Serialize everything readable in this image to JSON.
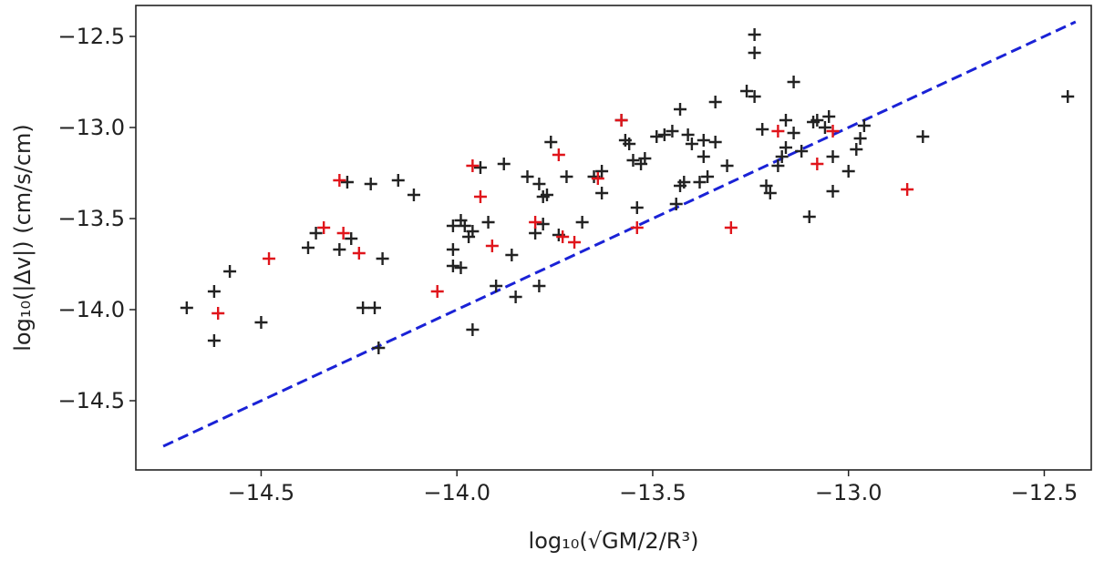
{
  "chart_data": {
    "type": "scatter",
    "xlabel": "log₁₀(√GM/2/R³)",
    "ylabel": "log₁₀(|Δv|) (cm/s/cm)",
    "xlim": [
      -14.82,
      -12.38
    ],
    "ylim": [
      -14.88,
      -12.33
    ],
    "xticks": [
      -14.5,
      -14.0,
      -13.5,
      -13.0,
      -12.5
    ],
    "xtick_labels": [
      "−14.5",
      "−14.0",
      "−13.5",
      "−13.0",
      "−12.5"
    ],
    "yticks": [
      -12.5,
      -13.0,
      -13.5,
      -14.0,
      -14.5
    ],
    "ytick_labels": [
      "−12.5",
      "−13.0",
      "−13.5",
      "−14.0",
      "−14.5"
    ],
    "grid": false,
    "marker": "+",
    "series": [
      {
        "color": "#222222",
        "points": [
          [
            -14.69,
            -13.99
          ],
          [
            -14.62,
            -13.9
          ],
          [
            -14.62,
            -14.17
          ],
          [
            -14.58,
            -13.79
          ],
          [
            -14.5,
            -14.07
          ],
          [
            -14.38,
            -13.66
          ],
          [
            -14.36,
            -13.58
          ],
          [
            -14.3,
            -13.67
          ],
          [
            -14.28,
            -13.3
          ],
          [
            -14.27,
            -13.61
          ],
          [
            -14.24,
            -13.99
          ],
          [
            -14.22,
            -13.31
          ],
          [
            -14.21,
            -13.99
          ],
          [
            -14.2,
            -14.21
          ],
          [
            -14.19,
            -13.72
          ],
          [
            -14.15,
            -13.29
          ],
          [
            -14.11,
            -13.37
          ],
          [
            -14.01,
            -13.54
          ],
          [
            -14.01,
            -13.67
          ],
          [
            -14.01,
            -13.76
          ],
          [
            -13.99,
            -13.51
          ],
          [
            -13.99,
            -13.77
          ],
          [
            -13.98,
            -13.54
          ],
          [
            -13.97,
            -13.6
          ],
          [
            -13.96,
            -14.11
          ],
          [
            -13.96,
            -13.57
          ],
          [
            -13.94,
            -13.22
          ],
          [
            -13.92,
            -13.52
          ],
          [
            -13.9,
            -13.87
          ],
          [
            -13.88,
            -13.2
          ],
          [
            -13.86,
            -13.7
          ],
          [
            -13.85,
            -13.93
          ],
          [
            -13.82,
            -13.27
          ],
          [
            -13.8,
            -13.58
          ],
          [
            -13.79,
            -13.31
          ],
          [
            -13.78,
            -13.53
          ],
          [
            -13.79,
            -13.87
          ],
          [
            -13.78,
            -13.38
          ],
          [
            -13.77,
            -13.37
          ],
          [
            -13.76,
            -13.08
          ],
          [
            -13.74,
            -13.59
          ],
          [
            -13.72,
            -13.27
          ],
          [
            -13.68,
            -13.52
          ],
          [
            -13.65,
            -13.27
          ],
          [
            -13.63,
            -13.36
          ],
          [
            -13.63,
            -13.24
          ],
          [
            -13.58,
            -12.96
          ],
          [
            -13.57,
            -13.07
          ],
          [
            -13.56,
            -13.09
          ],
          [
            -13.55,
            -13.18
          ],
          [
            -13.54,
            -13.44
          ],
          [
            -13.53,
            -13.2
          ],
          [
            -13.52,
            -13.17
          ],
          [
            -13.49,
            -13.05
          ],
          [
            -13.47,
            -13.04
          ],
          [
            -13.45,
            -13.02
          ],
          [
            -13.44,
            -13.42
          ],
          [
            -13.43,
            -12.9
          ],
          [
            -13.43,
            -13.32
          ],
          [
            -13.42,
            -13.3
          ],
          [
            -13.41,
            -13.04
          ],
          [
            -13.4,
            -13.09
          ],
          [
            -13.38,
            -13.3
          ],
          [
            -13.37,
            -13.16
          ],
          [
            -13.37,
            -13.07
          ],
          [
            -13.36,
            -13.27
          ],
          [
            -13.34,
            -12.86
          ],
          [
            -13.34,
            -13.08
          ],
          [
            -13.31,
            -13.21
          ],
          [
            -13.26,
            -12.8
          ],
          [
            -13.24,
            -12.49
          ],
          [
            -13.24,
            -12.59
          ],
          [
            -13.24,
            -12.83
          ],
          [
            -13.22,
            -13.01
          ],
          [
            -13.21,
            -13.32
          ],
          [
            -13.2,
            -13.36
          ],
          [
            -13.18,
            -13.21
          ],
          [
            -13.17,
            -13.16
          ],
          [
            -13.16,
            -13.11
          ],
          [
            -13.16,
            -12.96
          ],
          [
            -13.14,
            -12.75
          ],
          [
            -13.14,
            -13.03
          ],
          [
            -13.12,
            -13.13
          ],
          [
            -13.1,
            -13.49
          ],
          [
            -13.09,
            -12.97
          ],
          [
            -13.08,
            -12.96
          ],
          [
            -13.06,
            -13.0
          ],
          [
            -13.05,
            -12.94
          ],
          [
            -13.04,
            -13.35
          ],
          [
            -13.04,
            -13.16
          ],
          [
            -13.0,
            -13.24
          ],
          [
            -12.98,
            -13.12
          ],
          [
            -12.97,
            -13.06
          ],
          [
            -12.96,
            -12.99
          ],
          [
            -12.81,
            -13.05
          ],
          [
            -12.44,
            -12.83
          ]
        ]
      },
      {
        "color": "#e0151b",
        "points": [
          [
            -14.61,
            -14.02
          ],
          [
            -14.48,
            -13.72
          ],
          [
            -14.34,
            -13.55
          ],
          [
            -14.3,
            -13.29
          ],
          [
            -14.29,
            -13.58
          ],
          [
            -14.25,
            -13.69
          ],
          [
            -14.05,
            -13.9
          ],
          [
            -13.96,
            -13.21
          ],
          [
            -13.94,
            -13.38
          ],
          [
            -13.91,
            -13.65
          ],
          [
            -13.8,
            -13.52
          ],
          [
            -13.74,
            -13.15
          ],
          [
            -13.73,
            -13.6
          ],
          [
            -13.7,
            -13.63
          ],
          [
            -13.64,
            -13.28
          ],
          [
            -13.58,
            -12.96
          ],
          [
            -13.54,
            -13.55
          ],
          [
            -13.3,
            -13.55
          ],
          [
            -13.18,
            -13.02
          ],
          [
            -13.08,
            -13.2
          ],
          [
            -13.04,
            -13.02
          ],
          [
            -12.85,
            -13.34
          ]
        ]
      }
    ],
    "reference_line": {
      "color": "#1a22d6",
      "style": "dashed",
      "points": [
        [
          -14.75,
          -14.75
        ],
        [
          -12.42,
          -12.42
        ]
      ]
    }
  }
}
